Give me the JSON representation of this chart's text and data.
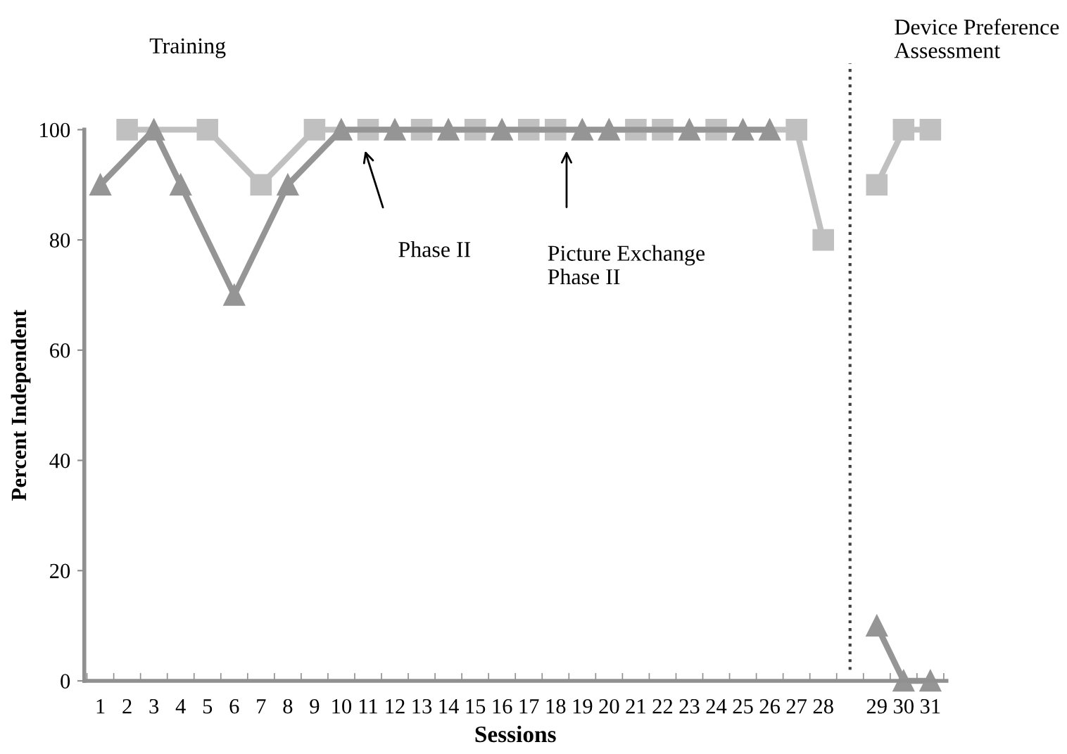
{
  "chart_data": {
    "type": "line",
    "ylabel": "Percent Independent",
    "xlabel": "Sessions",
    "categories": [
      "1",
      "2",
      "3",
      "4",
      "5",
      "6",
      "7",
      "8",
      "9",
      "10",
      "11",
      "12",
      "13",
      "14",
      "15",
      "16",
      "17",
      "18",
      "19",
      "20",
      "21",
      "22",
      "23",
      "24",
      "25",
      "26",
      "27",
      "28",
      null,
      "29",
      "30",
      "31"
    ],
    "series": [
      {
        "color": "#c0c0c0",
        "marker": "square",
        "x": [
          "2",
          "5",
          "7",
          "9",
          "11",
          "13",
          "15",
          "17",
          "18",
          "21",
          "22",
          "24",
          "27",
          "28"
        ],
        "values": [
          100,
          100,
          90,
          100,
          100,
          100,
          100,
          100,
          100,
          100,
          100,
          100,
          100,
          80
        ]
      },
      {
        "color": "#c0c0c0",
        "marker": "square",
        "x": [
          "29",
          "30",
          "31"
        ],
        "values": [
          90,
          100,
          100
        ]
      },
      {
        "color": "#959595",
        "marker": "triangle",
        "x": [
          "1",
          "3",
          "4",
          "6",
          "8",
          "10",
          "12",
          "14",
          "16",
          "19",
          "20",
          "23",
          "25",
          "26",
          "27"
        ],
        "values": [
          90,
          100,
          90,
          70,
          90,
          100,
          100,
          100,
          100,
          100,
          100,
          100,
          100,
          100,
          null
        ]
      },
      {
        "color": "#959595",
        "marker": "triangle",
        "x": [
          "29",
          "30",
          "31"
        ],
        "values": [
          10,
          0,
          0
        ]
      }
    ],
    "ylim": [
      0,
      100
    ],
    "yticks": [
      0,
      20,
      40,
      60,
      80,
      100
    ],
    "legend": false,
    "line_style": "solid",
    "ref_lines": [
      {
        "axis": "x",
        "value": null,
        "line_style": "dotted",
        "color": "#404040"
      }
    ],
    "annotations": [
      "Training",
      "Device Preference\nAssessment",
      "Phase II",
      "Picture Exchange\nPhase II"
    ]
  }
}
